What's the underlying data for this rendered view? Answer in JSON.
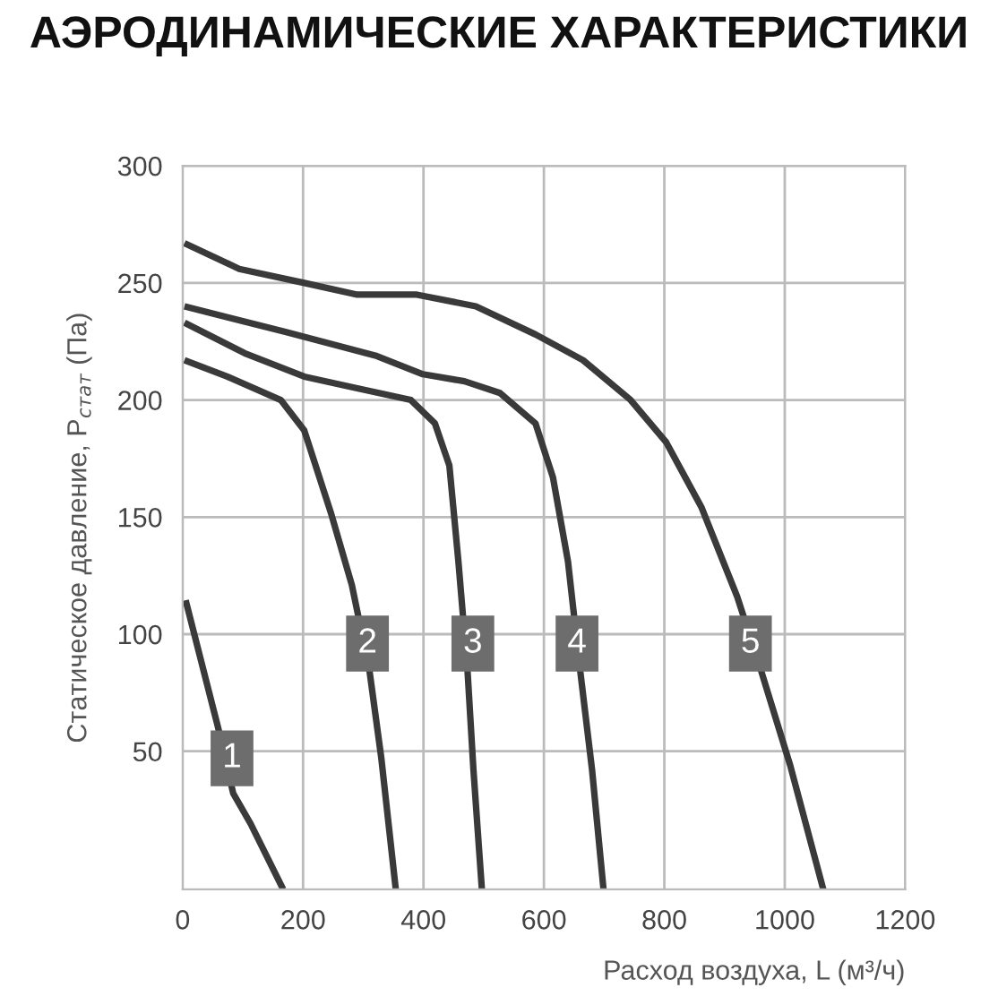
{
  "chart_data": {
    "type": "line",
    "title": "АЭРОДИНАМИЧЕСКИЕ ХАРАКТЕРИСТИКИ",
    "xlabel": "Расход воздуха, L (м³/ч)",
    "ylabel": "Статическое давление, P$_{стат}$ (Па)",
    "series": [
      {
        "color": "#3a3a3a",
        "x": [
          5,
          59,
          84,
          113,
          167
        ],
        "values": [
          114.5,
          60,
          32,
          19,
          -9
        ]
      },
      {
        "color": "#3a3a3a",
        "x": [
          3,
          74,
          163,
          202,
          246,
          281,
          310,
          330,
          354
        ],
        "values": [
          217,
          210,
          200,
          187,
          152,
          121,
          85,
          47,
          -9
        ]
      },
      {
        "color": "#3a3a3a",
        "x": [
          3,
          103,
          202,
          290,
          379,
          419,
          443,
          458,
          473,
          483,
          497
        ],
        "values": [
          233,
          220,
          210,
          205,
          200,
          190,
          172,
          131,
          85,
          42,
          -9
        ]
      },
      {
        "color": "#3a3a3a",
        "x": [
          3,
          172,
          320,
          399,
          468,
          527,
          586,
          615,
          640,
          660,
          680,
          699
        ],
        "values": [
          240,
          229,
          219,
          211,
          208,
          203,
          190,
          167,
          131,
          85,
          42,
          -9
        ]
      },
      {
        "color": "#3a3a3a",
        "x": [
          3,
          94,
          202,
          290,
          389,
          487,
          586,
          665,
          744,
          803,
          862,
          921,
          960,
          1009,
          1064
        ],
        "values": [
          267,
          256,
          250,
          245,
          245,
          240,
          228,
          217,
          200,
          182,
          154,
          116,
          85,
          44,
          -9
        ]
      }
    ],
    "annotations": [
      {
        "text": "1",
        "x": 82,
        "y": 47
      },
      {
        "text": "2",
        "x": 307,
        "y": 96
      },
      {
        "text": "3",
        "x": 482,
        "y": 96
      },
      {
        "text": "4",
        "x": 655,
        "y": 96
      },
      {
        "text": "5",
        "x": 943,
        "y": 96
      }
    ],
    "xlim": [
      0,
      1200
    ],
    "ylim": [
      -9,
      300
    ],
    "xticks": [
      0,
      200,
      400,
      600,
      800,
      1000,
      1200
    ],
    "yticks": [
      50,
      100,
      150,
      200,
      250,
      300
    ],
    "grid": true,
    "legend": false,
    "marker": "none",
    "line_style": "solid"
  }
}
